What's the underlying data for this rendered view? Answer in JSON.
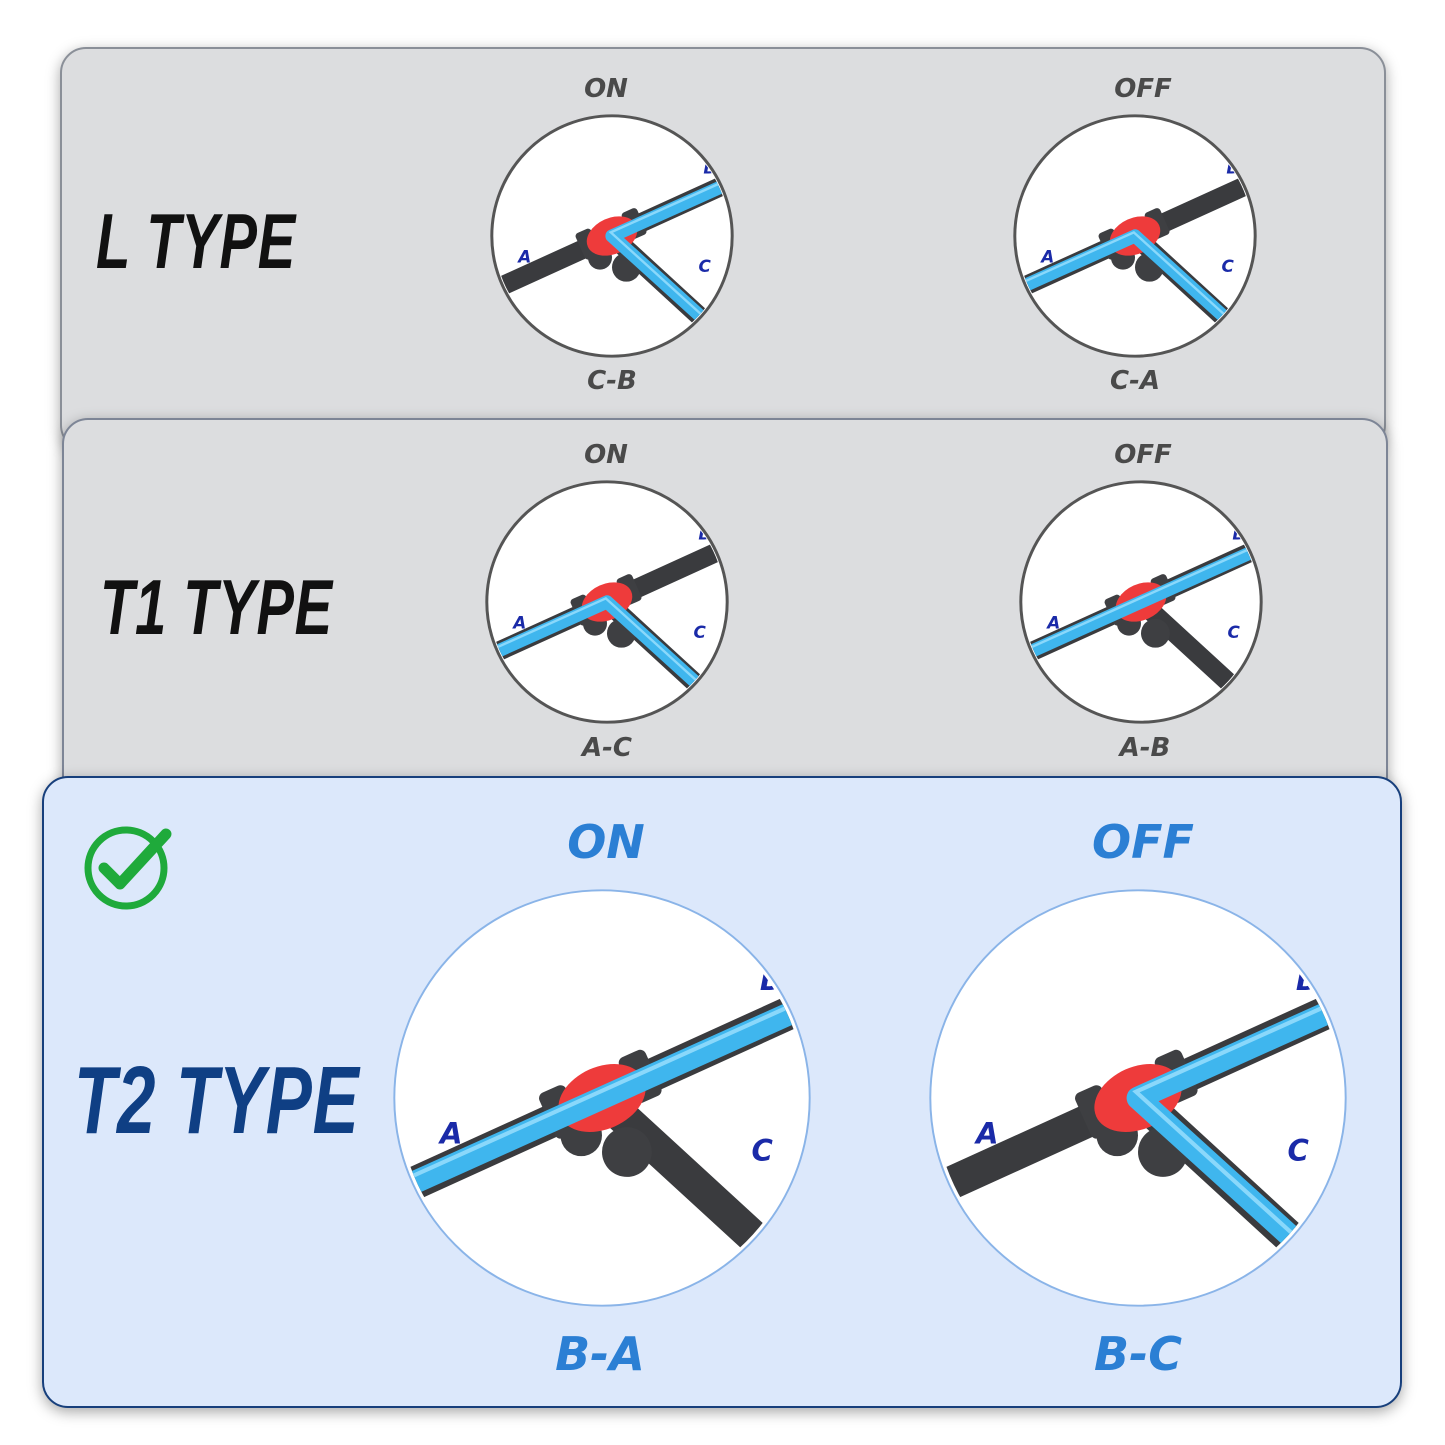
{
  "rows": [
    {
      "type": "L TYPE",
      "on": {
        "state": "ON",
        "path": "C-B",
        "flow": "C-B"
      },
      "off": {
        "state": "OFF",
        "path": "C-A",
        "flow": "C-A"
      }
    },
    {
      "type": "T1 TYPE",
      "on": {
        "state": "ON",
        "path": "A-C",
        "flow": "A-C"
      },
      "off": {
        "state": "OFF",
        "path": "A-B",
        "flow": "A-B"
      }
    },
    {
      "type": "T2 TYPE",
      "selected": true,
      "on": {
        "state": "ON",
        "path": "B-A",
        "flow": "A-B"
      },
      "off": {
        "state": "OFF",
        "path": "B-C",
        "flow": "B-C"
      }
    }
  ],
  "port_labels": [
    "A",
    "B",
    "C"
  ],
  "icons": {
    "selected": "check-circle-icon"
  },
  "colors": {
    "pipe": "#3a3b3e",
    "flow": "#3fb6ee",
    "core": "#ee3b3b",
    "port": "#1a2aa8",
    "selected_bg": "#dce8fb",
    "selected_border": "#173f7c",
    "selected_text": "#0f3f84",
    "accent": "#2b7fd4",
    "check": "#1faa3b"
  }
}
